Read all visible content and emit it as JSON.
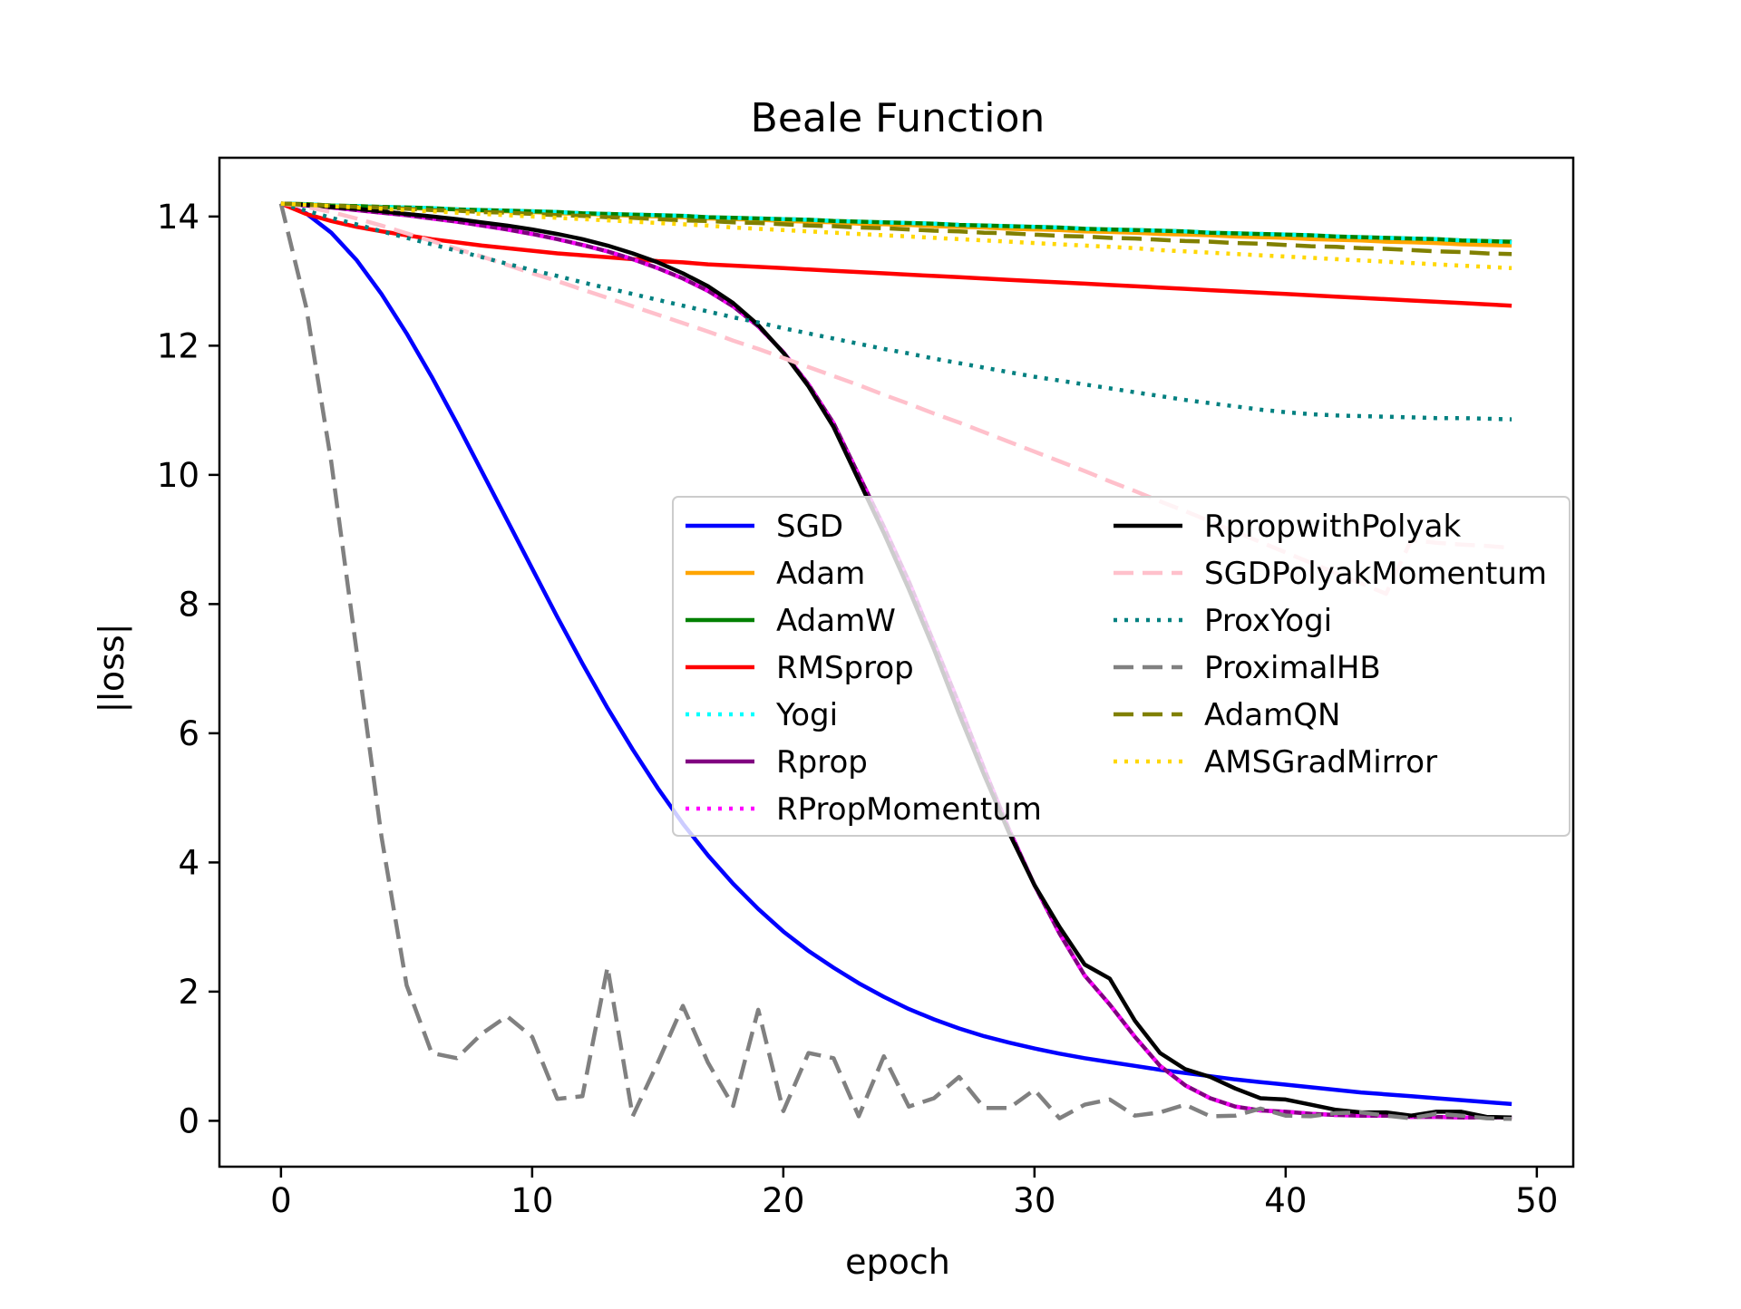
{
  "chart_data": {
    "type": "line",
    "title": "Beale Function",
    "xlabel": "epoch",
    "ylabel": "|loss|",
    "xlim": [
      -2.45,
      51.45
    ],
    "ylim": [
      -0.71,
      14.91
    ],
    "xticks": [
      0,
      10,
      20,
      30,
      40,
      50
    ],
    "yticks": [
      0,
      2,
      4,
      6,
      8,
      10,
      12,
      14
    ],
    "grid": false,
    "legend": {
      "placement": "center-right",
      "columns": 2
    },
    "x": [
      0,
      1,
      2,
      3,
      4,
      5,
      6,
      7,
      8,
      9,
      10,
      11,
      12,
      13,
      14,
      15,
      16,
      17,
      18,
      19,
      20,
      21,
      22,
      23,
      24,
      25,
      26,
      27,
      28,
      29,
      30,
      31,
      32,
      33,
      34,
      35,
      36,
      37,
      38,
      39,
      40,
      41,
      42,
      43,
      44,
      45,
      46,
      47,
      48,
      49
    ],
    "series": [
      {
        "name": "SGD",
        "color": "#0000ff",
        "dash": "solid",
        "values": [
          14.2,
          14.05,
          13.75,
          13.33,
          12.8,
          12.19,
          11.52,
          10.8,
          10.05,
          9.3,
          8.55,
          7.8,
          7.08,
          6.39,
          5.75,
          5.15,
          4.6,
          4.11,
          3.67,
          3.28,
          2.93,
          2.63,
          2.37,
          2.13,
          1.92,
          1.73,
          1.57,
          1.43,
          1.31,
          1.21,
          1.12,
          1.04,
          0.97,
          0.91,
          0.85,
          0.79,
          0.74,
          0.69,
          0.64,
          0.6,
          0.56,
          0.52,
          0.48,
          0.44,
          0.41,
          0.38,
          0.35,
          0.32,
          0.29,
          0.26
        ]
      },
      {
        "name": "Adam",
        "color": "#ffa500",
        "dash": "solid",
        "values": [
          14.2,
          14.19,
          14.17,
          14.16,
          14.15,
          14.13,
          14.12,
          14.11,
          14.09,
          14.08,
          14.07,
          14.05,
          14.04,
          14.03,
          14.01,
          14.0,
          13.99,
          13.97,
          13.96,
          13.95,
          13.93,
          13.92,
          13.91,
          13.89,
          13.88,
          13.87,
          13.85,
          13.84,
          13.83,
          13.81,
          13.8,
          13.79,
          13.77,
          13.76,
          13.75,
          13.73,
          13.72,
          13.71,
          13.69,
          13.68,
          13.67,
          13.65,
          13.64,
          13.63,
          13.61,
          13.6,
          13.59,
          13.57,
          13.56,
          13.55
        ]
      },
      {
        "name": "AdamW",
        "color": "#008000",
        "dash": "solid",
        "values": [
          14.2,
          14.19,
          14.17,
          14.16,
          14.15,
          14.14,
          14.13,
          14.11,
          14.1,
          14.09,
          14.08,
          14.07,
          14.05,
          14.04,
          14.03,
          14.02,
          14.01,
          13.99,
          13.98,
          13.97,
          13.96,
          13.95,
          13.93,
          13.92,
          13.91,
          13.9,
          13.89,
          13.87,
          13.86,
          13.85,
          13.84,
          13.83,
          13.81,
          13.8,
          13.79,
          13.78,
          13.77,
          13.75,
          13.74,
          13.73,
          13.72,
          13.71,
          13.69,
          13.68,
          13.67,
          13.66,
          13.65,
          13.63,
          13.62,
          13.61
        ]
      },
      {
        "name": "RMSprop",
        "color": "#ff0000",
        "dash": "solid",
        "values": [
          14.2,
          14.04,
          13.93,
          13.84,
          13.77,
          13.71,
          13.65,
          13.6,
          13.55,
          13.51,
          13.47,
          13.43,
          13.4,
          13.37,
          13.34,
          13.31,
          13.29,
          13.26,
          13.24,
          13.22,
          13.2,
          13.18,
          13.16,
          13.14,
          13.12,
          13.1,
          13.08,
          13.06,
          13.04,
          13.02,
          13.0,
          12.98,
          12.96,
          12.94,
          12.92,
          12.9,
          12.88,
          12.86,
          12.84,
          12.82,
          12.8,
          12.78,
          12.76,
          12.74,
          12.72,
          12.7,
          12.68,
          12.66,
          12.64,
          12.62
        ]
      },
      {
        "name": "Yogi",
        "color": "#00ffff",
        "dash": "dotted",
        "values": [
          14.2,
          14.19,
          14.17,
          14.16,
          14.15,
          14.14,
          14.13,
          14.11,
          14.1,
          14.09,
          14.08,
          14.07,
          14.05,
          14.04,
          14.03,
          14.02,
          14.01,
          13.99,
          13.98,
          13.97,
          13.96,
          13.95,
          13.93,
          13.92,
          13.91,
          13.9,
          13.89,
          13.87,
          13.86,
          13.85,
          13.84,
          13.83,
          13.81,
          13.8,
          13.79,
          13.78,
          13.77,
          13.75,
          13.74,
          13.73,
          13.72,
          13.71,
          13.69,
          13.68,
          13.67,
          13.66,
          13.65,
          13.63,
          13.62,
          13.6
        ]
      },
      {
        "name": "Rprop",
        "color": "#800080",
        "dash": "solid",
        "values": [
          14.2,
          14.17,
          14.14,
          14.1,
          14.06,
          14.02,
          13.97,
          13.92,
          13.86,
          13.8,
          13.73,
          13.65,
          13.56,
          13.46,
          13.34,
          13.2,
          13.04,
          12.85,
          12.61,
          12.3,
          11.9,
          11.4,
          10.8,
          10.0,
          9.2,
          8.35,
          7.4,
          6.45,
          5.45,
          4.5,
          3.65,
          2.9,
          2.25,
          1.8,
          1.3,
          0.85,
          0.55,
          0.35,
          0.22,
          0.16,
          0.14,
          0.11,
          0.09,
          0.08,
          0.08,
          0.06,
          0.06,
          0.05,
          0.05,
          0.05
        ]
      },
      {
        "name": "RPropMomentum",
        "color": "#ff00ff",
        "dash": "dotted",
        "values": [
          14.2,
          14.17,
          14.14,
          14.1,
          14.06,
          14.02,
          13.97,
          13.92,
          13.86,
          13.8,
          13.73,
          13.65,
          13.56,
          13.46,
          13.34,
          13.2,
          13.04,
          12.85,
          12.61,
          12.3,
          11.9,
          11.4,
          10.8,
          10.0,
          9.2,
          8.35,
          7.4,
          6.45,
          5.45,
          4.5,
          3.65,
          2.9,
          2.25,
          1.8,
          1.3,
          0.85,
          0.55,
          0.35,
          0.22,
          0.16,
          0.14,
          0.11,
          0.09,
          0.08,
          0.08,
          0.06,
          0.06,
          0.05,
          0.05,
          0.05
        ]
      },
      {
        "name": "RpropwithPolyak",
        "color": "#000000",
        "dash": "solid",
        "values": [
          14.2,
          14.18,
          14.15,
          14.12,
          14.08,
          14.04,
          14.0,
          13.96,
          13.91,
          13.86,
          13.8,
          13.73,
          13.65,
          13.55,
          13.43,
          13.29,
          13.12,
          12.92,
          12.66,
          12.32,
          11.89,
          11.37,
          10.74,
          9.92,
          9.1,
          8.23,
          7.3,
          6.3,
          5.35,
          4.45,
          3.65,
          3.0,
          2.42,
          2.2,
          1.55,
          1.05,
          0.8,
          0.68,
          0.5,
          0.35,
          0.33,
          0.25,
          0.17,
          0.13,
          0.13,
          0.08,
          0.14,
          0.14,
          0.06,
          0.05
        ]
      },
      {
        "name": "SGDPolyakMomentum",
        "color": "#ffc0cb",
        "dash": "dashed",
        "values": [
          14.2,
          14.15,
          14.07,
          13.97,
          13.86,
          13.74,
          13.62,
          13.5,
          13.38,
          13.25,
          13.12,
          13.0,
          12.87,
          12.74,
          12.61,
          12.48,
          12.35,
          12.22,
          12.08,
          11.95,
          11.81,
          11.67,
          11.53,
          11.39,
          11.24,
          11.1,
          10.95,
          10.81,
          10.66,
          10.51,
          10.36,
          10.21,
          10.06,
          9.9,
          9.75,
          9.59,
          9.44,
          9.28,
          9.12,
          8.96,
          8.8,
          8.64,
          8.48,
          8.32,
          8.16,
          8.99,
          8.95,
          8.92,
          8.9,
          8.87
        ]
      },
      {
        "name": "ProxYogi",
        "color": "#008080",
        "dash": "dotted",
        "values": [
          14.2,
          14.09,
          13.98,
          13.88,
          13.77,
          13.67,
          13.57,
          13.47,
          13.37,
          13.27,
          13.17,
          13.08,
          12.98,
          12.89,
          12.8,
          12.71,
          12.62,
          12.53,
          12.44,
          12.36,
          12.27,
          12.19,
          12.11,
          12.03,
          11.95,
          11.88,
          11.8,
          11.73,
          11.66,
          11.59,
          11.52,
          11.46,
          11.4,
          11.34,
          11.28,
          11.22,
          11.16,
          11.11,
          11.06,
          11.01,
          10.97,
          10.94,
          10.92,
          10.91,
          10.9,
          10.89,
          10.88,
          10.88,
          10.87,
          10.86
        ]
      },
      {
        "name": "ProximalHB",
        "color": "#808080",
        "dash": "dashed",
        "values": [
          14.2,
          12.6,
          10.2,
          7.3,
          4.4,
          2.1,
          1.05,
          0.97,
          1.35,
          1.62,
          1.3,
          0.34,
          0.38,
          2.38,
          0.07,
          0.9,
          1.78,
          0.9,
          0.23,
          1.72,
          0.15,
          1.05,
          0.97,
          0.07,
          1.0,
          0.22,
          0.35,
          0.68,
          0.2,
          0.2,
          0.48,
          0.04,
          0.25,
          0.33,
          0.08,
          0.13,
          0.25,
          0.07,
          0.08,
          0.19,
          0.08,
          0.07,
          0.12,
          0.13,
          0.08,
          0.04,
          0.11,
          0.08,
          0.04,
          0.03
        ]
      },
      {
        "name": "AdamQN",
        "color": "#808000",
        "dash": "dashed",
        "values": [
          14.2,
          14.18,
          14.17,
          14.15,
          14.14,
          14.12,
          14.1,
          14.09,
          14.07,
          14.06,
          14.04,
          14.02,
          14.01,
          13.99,
          13.98,
          13.96,
          13.94,
          13.93,
          13.91,
          13.9,
          13.88,
          13.86,
          13.85,
          13.83,
          13.82,
          13.8,
          13.78,
          13.77,
          13.75,
          13.74,
          13.72,
          13.7,
          13.69,
          13.67,
          13.66,
          13.64,
          13.62,
          13.61,
          13.59,
          13.58,
          13.56,
          13.54,
          13.53,
          13.51,
          13.5,
          13.48,
          13.46,
          13.45,
          13.43,
          13.42
        ]
      },
      {
        "name": "AMSGradMirror",
        "color": "#ffd700",
        "dash": "dotted",
        "values": [
          14.2,
          14.18,
          14.16,
          14.14,
          14.12,
          14.1,
          14.08,
          14.06,
          14.04,
          14.02,
          14.0,
          13.98,
          13.96,
          13.94,
          13.92,
          13.9,
          13.88,
          13.86,
          13.83,
          13.81,
          13.79,
          13.77,
          13.75,
          13.73,
          13.71,
          13.69,
          13.67,
          13.65,
          13.63,
          13.61,
          13.59,
          13.57,
          13.55,
          13.53,
          13.51,
          13.48,
          13.46,
          13.44,
          13.42,
          13.4,
          13.38,
          13.36,
          13.34,
          13.32,
          13.3,
          13.28,
          13.26,
          13.24,
          13.22,
          13.2
        ]
      }
    ]
  }
}
